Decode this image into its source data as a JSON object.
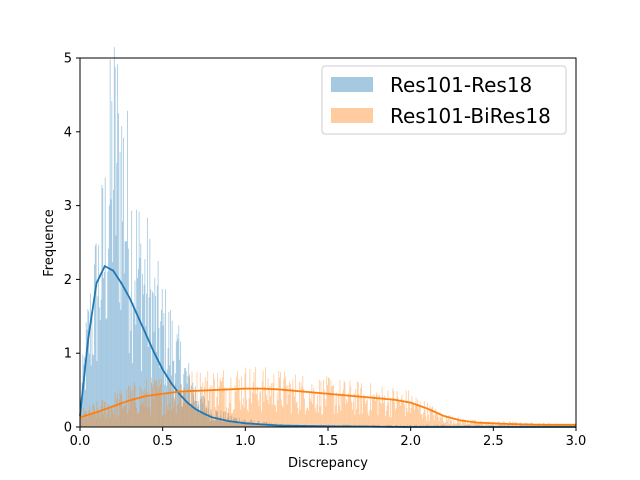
{
  "chart_data": {
    "type": "bar",
    "xlabel": "Discrepancy",
    "ylabel": "Frequence",
    "xlim": [
      0,
      3
    ],
    "ylim": [
      0,
      5
    ],
    "xticks": [
      "0.0",
      "0.5",
      "1.0",
      "1.5",
      "2.0",
      "2.5",
      "3.0"
    ],
    "yticks": [
      "0",
      "1",
      "2",
      "3",
      "4",
      "5"
    ],
    "grid": false,
    "legend_position": "top-right",
    "series": [
      {
        "name": "Res101-Res18",
        "color": "#1f77b4",
        "histogram": {
          "bin_width": 0.005,
          "range": [
            0,
            3
          ],
          "heights_sampled_every_0.05": [
            0.3,
            1.2,
            1.8,
            2.4,
            3.6,
            3.4,
            2.6,
            2.1,
            1.9,
            1.5,
            1.3,
            1.1,
            0.85,
            0.6,
            0.45,
            0.3,
            0.2,
            0.15,
            0.12,
            0.1,
            0.08,
            0.06,
            0.05,
            0.04,
            0.03,
            0.02
          ]
        },
        "kde": {
          "x": [
            0.0,
            0.05,
            0.1,
            0.15,
            0.2,
            0.25,
            0.3,
            0.35,
            0.4,
            0.45,
            0.5,
            0.55,
            0.6,
            0.65,
            0.7,
            0.75,
            0.8,
            0.9,
            1.0,
            1.2,
            1.5,
            2.0,
            3.0
          ],
          "y": [
            0.15,
            1.2,
            1.95,
            2.18,
            2.12,
            1.95,
            1.75,
            1.5,
            1.25,
            1.0,
            0.78,
            0.6,
            0.45,
            0.33,
            0.24,
            0.18,
            0.13,
            0.08,
            0.05,
            0.02,
            0.01,
            0.0,
            0.0
          ]
        }
      },
      {
        "name": "Res101-BiRes18",
        "color": "#ff7f0e",
        "histogram": {
          "bin_width": 0.005,
          "range": [
            0,
            3
          ],
          "heights_sampled_every_0.1": [
            0.15,
            0.22,
            0.3,
            0.38,
            0.42,
            0.45,
            0.48,
            0.5,
            0.52,
            0.53,
            0.54,
            0.52,
            0.5,
            0.47,
            0.45,
            0.43,
            0.41,
            0.39,
            0.37,
            0.35,
            0.32,
            0.22,
            0.12,
            0.08,
            0.06,
            0.05,
            0.05,
            0.04,
            0.04,
            0.03
          ]
        },
        "kde": {
          "x": [
            0.0,
            0.1,
            0.2,
            0.3,
            0.4,
            0.5,
            0.6,
            0.7,
            0.8,
            0.9,
            1.0,
            1.1,
            1.2,
            1.3,
            1.4,
            1.5,
            1.6,
            1.7,
            1.8,
            1.9,
            2.0,
            2.1,
            2.2,
            2.3,
            2.4,
            2.5,
            2.6,
            2.8,
            3.0
          ],
          "y": [
            0.13,
            0.2,
            0.28,
            0.36,
            0.42,
            0.45,
            0.48,
            0.49,
            0.5,
            0.51,
            0.52,
            0.52,
            0.51,
            0.49,
            0.47,
            0.45,
            0.43,
            0.41,
            0.39,
            0.37,
            0.33,
            0.25,
            0.15,
            0.09,
            0.06,
            0.05,
            0.04,
            0.03,
            0.03
          ]
        }
      }
    ]
  }
}
